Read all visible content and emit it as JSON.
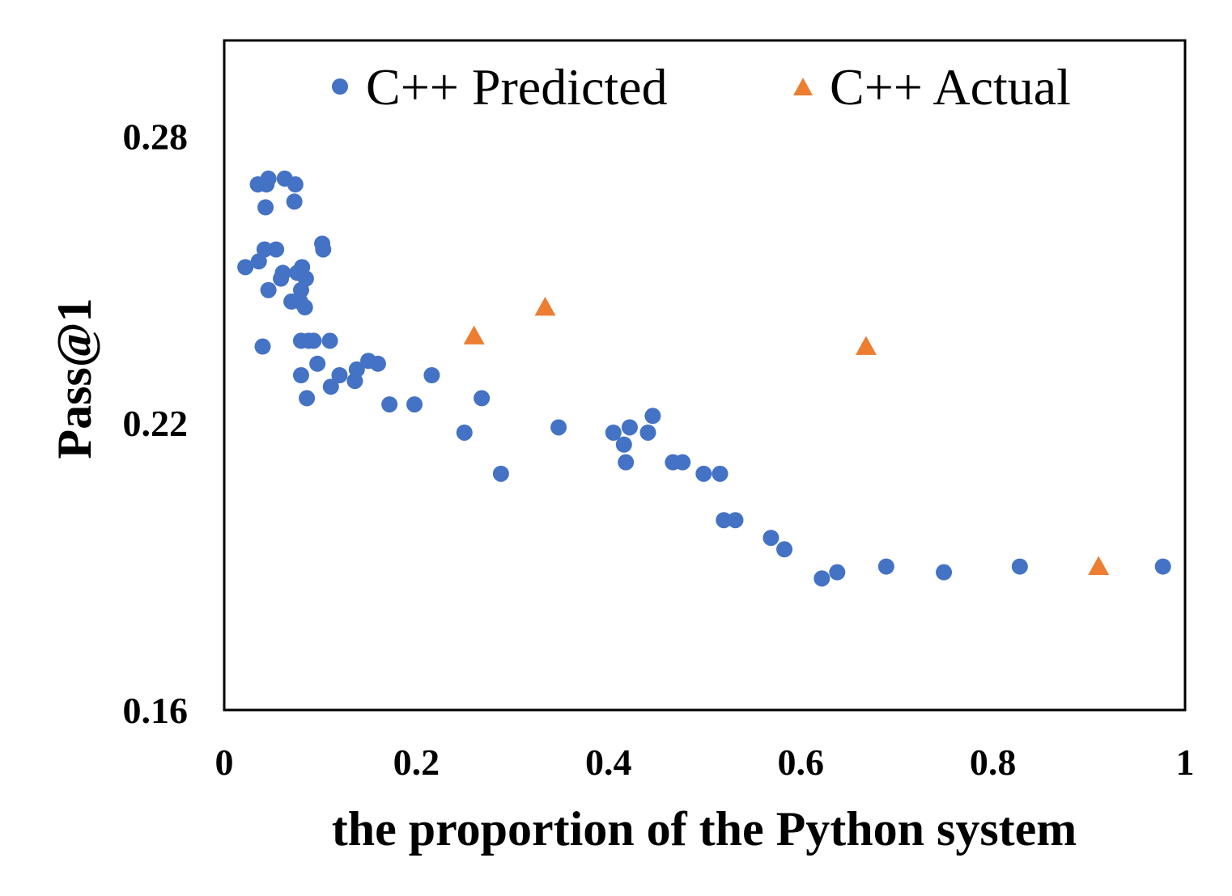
{
  "chart_data": {
    "type": "scatter",
    "title": "",
    "xlabel": "the proportion of the Python system",
    "ylabel": "Pass@1",
    "xlim": [
      0,
      1
    ],
    "ylim": [
      0.16,
      0.3
    ],
    "xticks": [
      0,
      0.2,
      0.4,
      0.6,
      0.8,
      1
    ],
    "xtick_labels": [
      "0",
      "0.2",
      "0.4",
      "0.6",
      "0.8",
      "1"
    ],
    "yticks": [
      0.16,
      0.22,
      0.28
    ],
    "ytick_labels": [
      "0.16",
      "0.22",
      "0.28"
    ],
    "grid": false,
    "legend_position": "top",
    "series": [
      {
        "name": "C++ Predicted",
        "marker": "circle",
        "color": "#4472C4",
        "points": [
          [
            0.022,
            0.2526
          ],
          [
            0.036,
            0.2538
          ],
          [
            0.035,
            0.2699
          ],
          [
            0.044,
            0.2699
          ],
          [
            0.046,
            0.2711
          ],
          [
            0.063,
            0.2711
          ],
          [
            0.074,
            0.2699
          ],
          [
            0.043,
            0.2651
          ],
          [
            0.073,
            0.2663
          ],
          [
            0.042,
            0.2563
          ],
          [
            0.054,
            0.2563
          ],
          [
            0.102,
            0.2575
          ],
          [
            0.103,
            0.2563
          ],
          [
            0.04,
            0.236
          ],
          [
            0.046,
            0.2478
          ],
          [
            0.059,
            0.2502
          ],
          [
            0.061,
            0.2514
          ],
          [
            0.076,
            0.2514
          ],
          [
            0.081,
            0.2526
          ],
          [
            0.085,
            0.2502
          ],
          [
            0.08,
            0.2478
          ],
          [
            0.07,
            0.2454
          ],
          [
            0.079,
            0.2454
          ],
          [
            0.084,
            0.2442
          ],
          [
            0.08,
            0.2372
          ],
          [
            0.088,
            0.2372
          ],
          [
            0.093,
            0.2372
          ],
          [
            0.11,
            0.2372
          ],
          [
            0.097,
            0.2324
          ],
          [
            0.08,
            0.23
          ],
          [
            0.086,
            0.2252
          ],
          [
            0.111,
            0.2276
          ],
          [
            0.12,
            0.23
          ],
          [
            0.136,
            0.2288
          ],
          [
            0.138,
            0.2312
          ],
          [
            0.15,
            0.233
          ],
          [
            0.16,
            0.2324
          ],
          [
            0.172,
            0.2239
          ],
          [
            0.198,
            0.2239
          ],
          [
            0.216,
            0.23
          ],
          [
            0.25,
            0.218
          ],
          [
            0.268,
            0.2252
          ],
          [
            0.288,
            0.2094
          ],
          [
            0.348,
            0.2191
          ],
          [
            0.405,
            0.218
          ],
          [
            0.416,
            0.2155
          ],
          [
            0.422,
            0.2191
          ],
          [
            0.441,
            0.218
          ],
          [
            0.446,
            0.2215
          ],
          [
            0.418,
            0.2118
          ],
          [
            0.467,
            0.2118
          ],
          [
            0.477,
            0.2118
          ],
          [
            0.499,
            0.2094
          ],
          [
            0.516,
            0.2094
          ],
          [
            0.52,
            0.1997
          ],
          [
            0.532,
            0.1997
          ],
          [
            0.569,
            0.196
          ],
          [
            0.583,
            0.1936
          ],
          [
            0.622,
            0.1875
          ],
          [
            0.638,
            0.1888
          ],
          [
            0.689,
            0.19
          ],
          [
            0.749,
            0.1888
          ],
          [
            0.828,
            0.19
          ],
          [
            0.977,
            0.19
          ]
        ]
      },
      {
        "name": "C++ Actual",
        "marker": "triangle",
        "color": "#ED7D31",
        "points": [
          [
            0.26,
            0.2382
          ],
          [
            0.334,
            0.2442
          ],
          [
            0.668,
            0.236
          ],
          [
            0.91,
            0.19
          ]
        ]
      }
    ]
  }
}
